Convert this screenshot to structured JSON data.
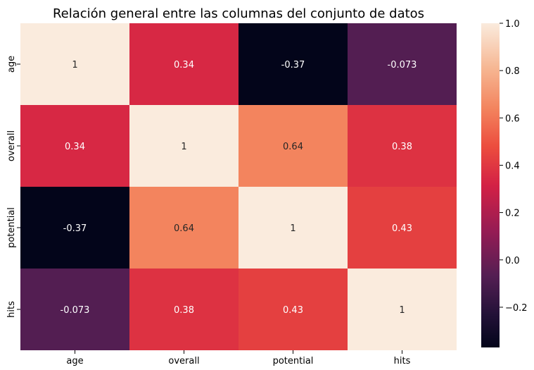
{
  "chart_data": {
    "type": "heatmap",
    "title": "Relación general entre las columnas del conjunto de datos",
    "xlabel": "",
    "ylabel": "",
    "rows": [
      "age",
      "overall",
      "potential",
      "hits"
    ],
    "columns": [
      "age",
      "overall",
      "potential",
      "hits"
    ],
    "values": [
      [
        1,
        0.34,
        -0.37,
        -0.073
      ],
      [
        0.34,
        1,
        0.64,
        0.38
      ],
      [
        -0.37,
        0.64,
        1,
        0.43
      ],
      [
        -0.073,
        0.38,
        0.43,
        1
      ]
    ],
    "cell_labels": [
      [
        "1",
        "0.34",
        "-0.37",
        "-0.073"
      ],
      [
        "0.34",
        "1",
        "0.64",
        "0.38"
      ],
      [
        "-0.37",
        "0.64",
        "1",
        "0.43"
      ],
      [
        "-0.073",
        "0.38",
        "0.43",
        "1"
      ]
    ],
    "colorbar": {
      "range": [
        -0.37,
        1
      ],
      "ticks": [
        "1.0",
        "0.8",
        "0.6",
        "0.4",
        "0.2",
        "0.0",
        "−0.2"
      ],
      "tick_values": [
        1.0,
        0.8,
        0.6,
        0.4,
        0.2,
        0.0,
        -0.2
      ]
    },
    "colormap": "rocket",
    "grid": false
  }
}
